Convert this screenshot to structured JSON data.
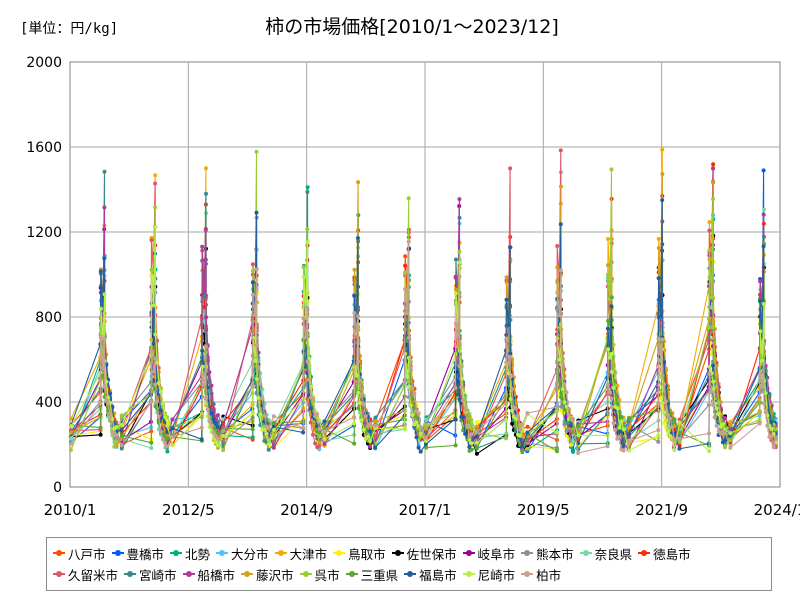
{
  "chart_data": {
    "type": "line",
    "title": "柿の市場価格[2010/1～2023/12]",
    "unit_label": "[単位：円/kg]",
    "xlabel": "",
    "ylabel": "",
    "ylim": [
      0,
      2000
    ],
    "yticks": [
      "0",
      "400",
      "800",
      "1200",
      "1600",
      "2000"
    ],
    "xlim": [
      "2010/1",
      "2024/1"
    ],
    "xticks": [
      "2010/1",
      "2012/5",
      "2014/9",
      "2017/1",
      "2019/5",
      "2021/9",
      "2024/1"
    ],
    "grid": true,
    "legend_position": "bottom",
    "series": [
      {
        "name": "八戸市",
        "color": "#ff4b00",
        "peak": 1000,
        "offset": 0.05,
        "seed": 1
      },
      {
        "name": "豊橋市",
        "color": "#005aff",
        "peak": 950,
        "offset": -0.05,
        "seed": 2
      },
      {
        "name": "北勢",
        "color": "#03af7a",
        "peak": 900,
        "offset": 0.1,
        "seed": 3
      },
      {
        "name": "大分市",
        "color": "#4dc4ff",
        "peak": 1000,
        "offset": 0.0,
        "seed": 4
      },
      {
        "name": "大津市",
        "color": "#f6aa00",
        "peak": 1300,
        "offset": 0.0,
        "seed": 5
      },
      {
        "name": "鳥取市",
        "color": "#fff100",
        "peak": 700,
        "offset": 0.15,
        "seed": 6
      },
      {
        "name": "佐世保市",
        "color": "#000000",
        "peak": 850,
        "offset": 0.05,
        "seed": 7
      },
      {
        "name": "岐阜市",
        "color": "#990099",
        "peak": 900,
        "offset": -0.1,
        "seed": 8
      },
      {
        "name": "熊本市",
        "color": "#84919e",
        "peak": 850,
        "offset": 0.0,
        "seed": 9
      },
      {
        "name": "奈良県",
        "color": "#77d9a8",
        "peak": 950,
        "offset": 0.08,
        "seed": 10
      },
      {
        "name": "徳島市",
        "color": "#ff2800",
        "peak": 1100,
        "offset": 0.0,
        "seed": 11
      },
      {
        "name": "久留米市",
        "color": "#e0556a",
        "peak": 1150,
        "offset": -0.03,
        "seed": 12
      },
      {
        "name": "宮崎市",
        "color": "#3a8a8a",
        "peak": 1000,
        "offset": 0.02,
        "seed": 13
      },
      {
        "name": "船橋市",
        "color": "#b03a9a",
        "peak": 1000,
        "offset": -0.02,
        "seed": 14
      },
      {
        "name": "藤沢市",
        "color": "#d4a017",
        "peak": 1050,
        "offset": 0.03,
        "seed": 15
      },
      {
        "name": "呉市",
        "color": "#9acd32",
        "peak": 1100,
        "offset": -0.04,
        "seed": 16
      },
      {
        "name": "三重県",
        "color": "#5aa832",
        "peak": 800,
        "offset": 0.06,
        "seed": 17
      },
      {
        "name": "福島市",
        "color": "#1f5f9f",
        "peak": 950,
        "offset": -0.06,
        "seed": 18
      },
      {
        "name": "尼崎市",
        "color": "#b8f045",
        "peak": 900,
        "offset": 0.04,
        "seed": 19
      },
      {
        "name": "柏市",
        "color": "#c8a090",
        "peak": 800,
        "offset": -0.01,
        "seed": 20
      }
    ]
  }
}
